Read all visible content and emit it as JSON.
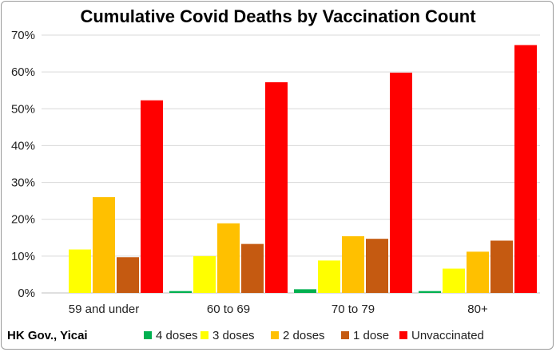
{
  "chart_data": {
    "type": "bar",
    "title": "Cumulative Covid Deaths by Vaccination Count",
    "categories": [
      "59 and under",
      "60 to 69",
      "70 to 79",
      "80+"
    ],
    "series": [
      {
        "name": "4 doses",
        "color": "#00b050",
        "values": [
          0,
          0.5,
          1.0,
          0.5
        ]
      },
      {
        "name": "3 doses",
        "color": "#ffff00",
        "values": [
          11.8,
          10.0,
          8.8,
          6.6
        ]
      },
      {
        "name": "2 doses",
        "color": "#ffc000",
        "values": [
          26.0,
          18.9,
          15.4,
          11.2
        ]
      },
      {
        "name": "1 dose",
        "color": "#c55a11",
        "values": [
          9.7,
          13.3,
          14.7,
          14.2
        ]
      },
      {
        "name": "Unvaccinated",
        "color": "#ff0000",
        "values": [
          52.3,
          57.2,
          59.8,
          67.3
        ]
      }
    ],
    "ylim": [
      0,
      70
    ],
    "yticks": [
      "0%",
      "10%",
      "20%",
      "30%",
      "40%",
      "50%",
      "60%",
      "70%"
    ],
    "grid": true,
    "legend_position": "bottom"
  },
  "source": "HK Gov., Yicai"
}
